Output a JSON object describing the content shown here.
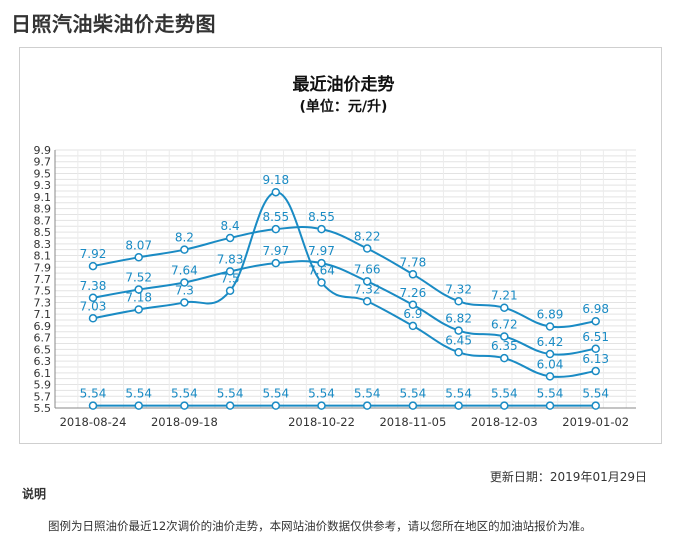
{
  "page": {
    "title": "日照汽油柴油价走势图"
  },
  "chart_data": {
    "type": "line",
    "title": "最近油价走势",
    "subtitle": "(单位：元/升)",
    "ylim": [
      5.5,
      9.9
    ],
    "yticks": [
      "5.5",
      "5.7",
      "5.9",
      "6.1",
      "6.3",
      "6.5",
      "6.7",
      "6.9",
      "7.1",
      "7.3",
      "7.5",
      "7.7",
      "7.9",
      "8.1",
      "8.3",
      "8.5",
      "8.7",
      "8.9",
      "9.1",
      "9.3",
      "9.5",
      "9.7",
      "9.9"
    ],
    "x_tick_labels": [
      {
        "index": 0,
        "label": "2018-08-24"
      },
      {
        "index": 2,
        "label": "2018-09-18"
      },
      {
        "index": 5,
        "label": "2018-10-22"
      },
      {
        "index": 7,
        "label": "2018-11-05"
      },
      {
        "index": 9,
        "label": "2018-12-03"
      },
      {
        "index": 11,
        "label": "2019-01-02"
      }
    ],
    "point_count": 12,
    "series": [
      {
        "name": "series-1",
        "values": [
          7.92,
          8.07,
          8.2,
          8.4,
          8.55,
          8.55,
          8.22,
          7.78,
          7.32,
          7.21,
          6.89,
          6.98
        ],
        "labels": [
          "7.92",
          "8.07",
          "8.2",
          "8.4",
          "8.55",
          "8.55",
          "8.22",
          "7.78",
          "7.32",
          "7.21",
          "6.89",
          "6.98"
        ]
      },
      {
        "name": "series-2",
        "values": [
          7.38,
          7.52,
          7.64,
          7.83,
          7.97,
          7.97,
          7.66,
          7.26,
          6.82,
          6.72,
          6.42,
          6.51
        ],
        "labels": [
          "7.38",
          "7.52",
          "7.64",
          "7.83",
          "7.97",
          "7.97",
          "7.66",
          "7.26",
          "6.82",
          "6.72",
          "6.42",
          "6.51"
        ]
      },
      {
        "name": "series-3",
        "values": [
          7.03,
          7.18,
          7.3,
          7.5,
          9.18,
          7.64,
          7.32,
          6.9,
          6.45,
          6.35,
          6.04,
          6.13
        ],
        "labels": [
          "7.03",
          "7.18",
          "7.3",
          "7.5",
          "9.18",
          "7.64",
          "7.32",
          "6.9",
          "6.45",
          "6.35",
          "6.04",
          "6.13"
        ]
      },
      {
        "name": "series-4",
        "values": [
          5.54,
          5.54,
          5.54,
          5.54,
          5.54,
          5.54,
          5.54,
          5.54,
          5.54,
          5.54,
          5.54,
          5.54
        ],
        "labels": [
          "5.54",
          "5.54",
          "5.54",
          "5.54",
          "5.54",
          "5.54",
          "5.54",
          "5.54",
          "5.54",
          "5.54",
          "5.54",
          "5.54"
        ]
      }
    ],
    "line_color": "#1a8bc4",
    "label_color": "#1a8bc4",
    "grid": true
  },
  "footer": {
    "update_date": "更新日期：2019年01月29日",
    "desc_heading": "说明",
    "desc_text": "图例为日照油价最近12次调价的油价走势，本网站油价数据仅供参考，请以您所在地区的加油站报价为准。"
  }
}
